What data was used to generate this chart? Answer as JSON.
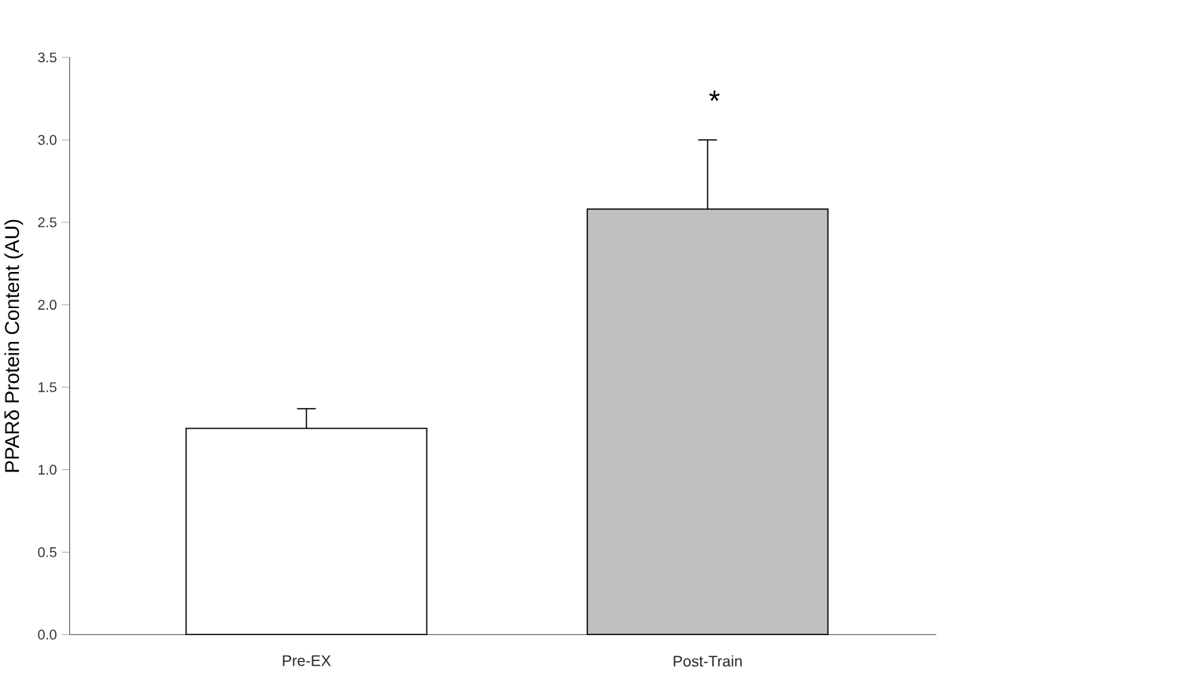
{
  "chart_data": {
    "type": "bar",
    "ylabel": "PPARδ Protein Content (AU)",
    "categories": [
      "Pre-EX",
      "Post-Train"
    ],
    "values": [
      1.25,
      2.58
    ],
    "colors": [
      "#ffffff",
      "#c0c0c0"
    ],
    "errors": [
      [
        1.25,
        1.37
      ],
      [
        2.58,
        3.0
      ]
    ],
    "ylim": [
      0,
      3.5
    ],
    "yticks": [
      {
        "value": 0,
        "label": "0.0"
      },
      {
        "value": 0.5,
        "label": "0.5"
      },
      {
        "value": 1,
        "label": "1.0"
      },
      {
        "value": 1.5,
        "label": "1.5"
      },
      {
        "value": 2,
        "label": "2.0"
      },
      {
        "value": 2.5,
        "label": "2.5"
      },
      {
        "value": 3,
        "label": "3.0"
      },
      {
        "value": 3.5,
        "label": "3.5"
      }
    ],
    "annotations": [
      "*"
    ],
    "grid": false
  }
}
